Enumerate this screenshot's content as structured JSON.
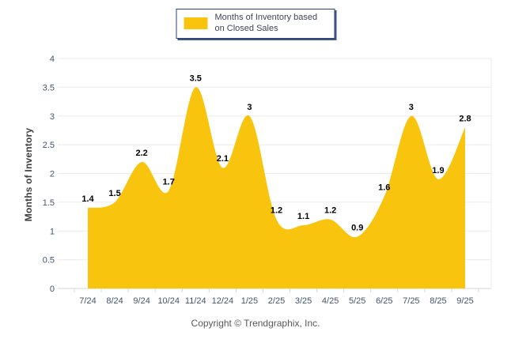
{
  "legend": {
    "label": "Months of Inventory based on Closed Sales"
  },
  "footer": {
    "text": "Copyright © Trendgraphix, Inc."
  },
  "chart_data": {
    "type": "area",
    "title": "",
    "categories": [
      "7/24",
      "8/24",
      "9/24",
      "10/24",
      "11/24",
      "12/24",
      "1/25",
      "2/25",
      "3/25",
      "4/25",
      "5/25",
      "6/25",
      "7/25",
      "8/25",
      "9/25"
    ],
    "values": [
      1.4,
      1.5,
      2.2,
      1.7,
      3.5,
      2.1,
      3,
      1.2,
      1.1,
      1.2,
      0.9,
      1.6,
      3,
      1.9,
      2.8
    ],
    "point_labels": [
      "1.4",
      "1.5",
      "2.2",
      "1.7",
      "3.5",
      "2.1",
      "3",
      "1.2",
      "1.1",
      "1.2",
      "0.9",
      "1.6",
      "3",
      "1.9",
      "2.8"
    ],
    "series_name": "Months of Inventory based on Closed Sales",
    "xlabel": "",
    "ylabel": "Months of Inventory",
    "ylim": [
      0,
      4
    ],
    "yticks": [
      "0",
      "0.5",
      "1",
      "1.5",
      "2",
      "2.5",
      "3",
      "3.5",
      "4"
    ],
    "grid": true,
    "legend_position": "top-center",
    "smooth": true,
    "colors": {
      "area_fill": "#F8C40D",
      "data_label": "#000000",
      "tick_label": "#44546A",
      "gridline": "#EBEBEB",
      "axis_line": "#D6D6D6"
    }
  }
}
